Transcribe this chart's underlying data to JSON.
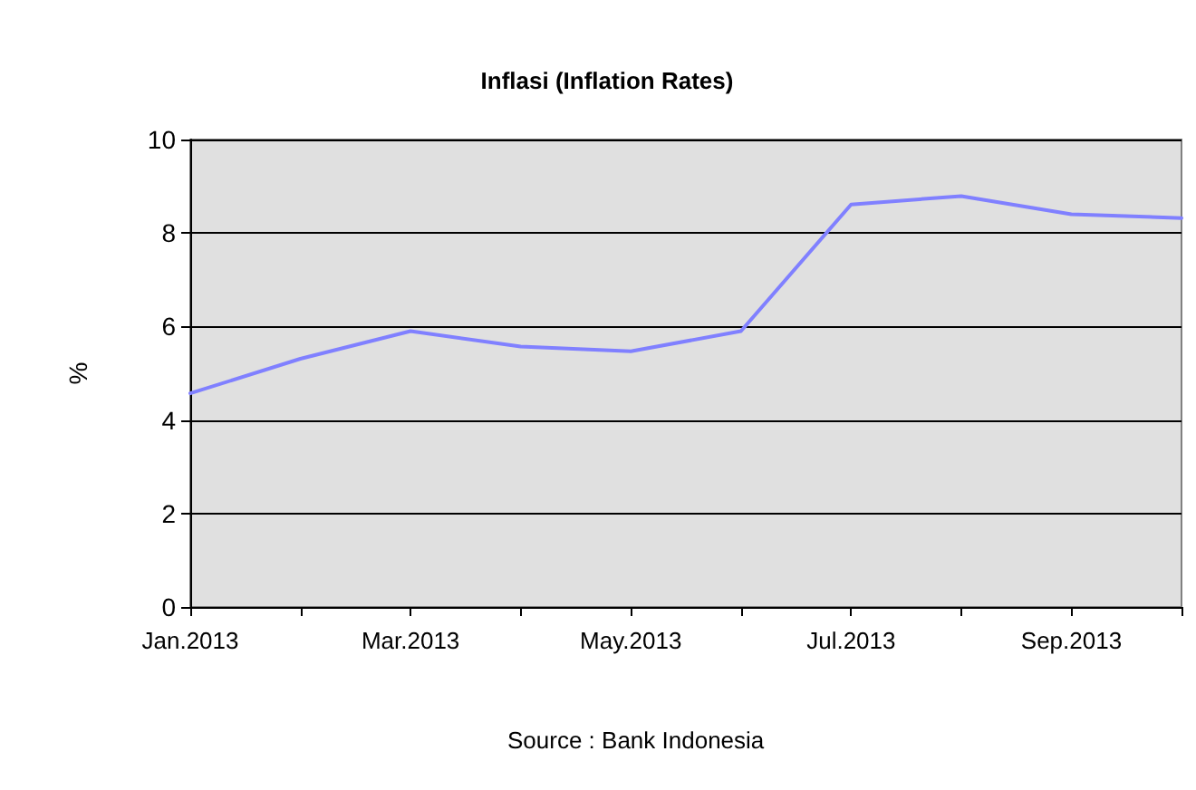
{
  "chart_data": {
    "type": "line",
    "title": "Inflasi (Inflation Rates)",
    "ylabel": "%",
    "categories": [
      "Jan.2013",
      null,
      "Mar.2013",
      null,
      "May.2013",
      null,
      "Jul.2013",
      null,
      "Sep.2013",
      null
    ],
    "series": [
      {
        "color": "#8080ff",
        "values": [
          4.57,
          5.31,
          5.9,
          5.57,
          5.47,
          5.9,
          8.61,
          8.79,
          8.4,
          8.32
        ]
      }
    ],
    "ylim": [
      0,
      10
    ],
    "yticks": [
      0,
      2,
      4,
      6,
      8,
      10
    ],
    "grid": "y",
    "marker": "none",
    "line_style": "solid",
    "annotations": [
      "Source : Bank Indonesia"
    ]
  }
}
